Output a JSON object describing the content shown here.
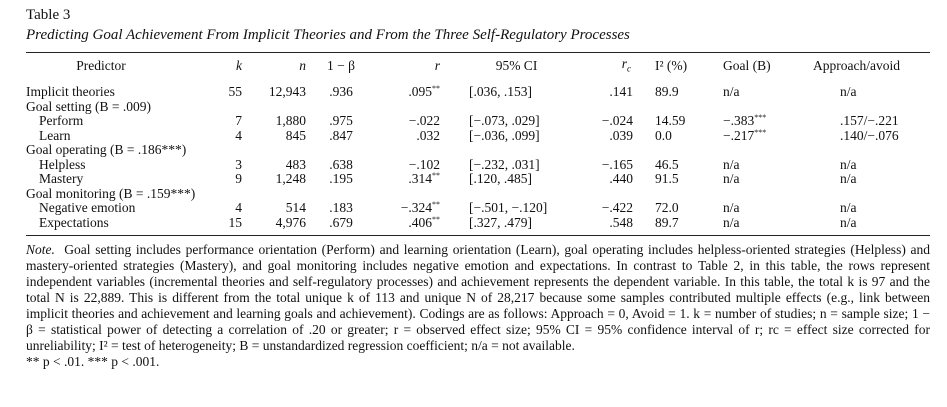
{
  "table_label": "Table 3",
  "table_title": "Predicting Goal Achievement From Implicit Theories and From the Three Self-Regulatory Processes",
  "columns": {
    "predictor": "Predictor",
    "k": "k",
    "N": "n",
    "power": "1 − β",
    "r": "r",
    "ci": "95% CI",
    "rc": "r",
    "rc_sub": "c",
    "i2": "I² (%)",
    "goal": "Goal (B)",
    "approach": "Approach/avoid"
  },
  "rows": [
    {
      "predictor": "Implicit theories",
      "indent": false,
      "k": "55",
      "n": "12,943",
      "power": ".936",
      "r": ".095",
      "r_sig": "**",
      "ci": "[.036, .153]",
      "rc": ".141",
      "i2": "89.9",
      "goal": "n/a",
      "goal_sig": "",
      "approach": "n/a"
    },
    {
      "predictor": "Goal setting (B = .009)",
      "indent": false,
      "header": true
    },
    {
      "predictor": "Perform",
      "indent": true,
      "k": "7",
      "n": "1,880",
      "power": ".975",
      "r": "−.022",
      "r_sig": "",
      "ci": "[−.073, .029]",
      "rc": "−.024",
      "i2": "14.59",
      "goal": "−.383",
      "goal_sig": "***",
      "approach": ".157/−.221"
    },
    {
      "predictor": "Learn",
      "indent": true,
      "k": "4",
      "n": "845",
      "power": ".847",
      "r": ".032",
      "r_sig": "",
      "ci": "[−.036, .099]",
      "rc": ".039",
      "i2": "0.0",
      "goal": "−.217",
      "goal_sig": "***",
      "approach": ".140/−.076"
    },
    {
      "predictor": "Goal operating (B = .186***)",
      "indent": false,
      "header": true
    },
    {
      "predictor": "Helpless",
      "indent": true,
      "k": "3",
      "n": "483",
      "power": ".638",
      "r": "−.102",
      "r_sig": "",
      "ci": "[−.232, .031]",
      "rc": "−.165",
      "i2": "46.5",
      "goal": "n/a",
      "goal_sig": "",
      "approach": "n/a"
    },
    {
      "predictor": "Mastery",
      "indent": true,
      "k": "9",
      "n": "1,248",
      "power": ".195",
      "r": ".314",
      "r_sig": "**",
      "ci": "[.120, .485]",
      "rc": ".440",
      "i2": "91.5",
      "goal": "n/a",
      "goal_sig": "",
      "approach": "n/a"
    },
    {
      "predictor": "Goal monitoring (B = .159***)",
      "indent": false,
      "header": true
    },
    {
      "predictor": "Negative emotion",
      "indent": true,
      "k": "4",
      "n": "514",
      "power": ".183",
      "r": "−.324",
      "r_sig": "**",
      "ci": "[−.501, −.120]",
      "rc": "−.422",
      "i2": "72.0",
      "goal": "n/a",
      "goal_sig": "",
      "approach": "n/a"
    },
    {
      "predictor": "Expectations",
      "indent": true,
      "k": "15",
      "n": "4,976",
      "power": ".679",
      "r": ".406",
      "r_sig": "**",
      "ci": "[.327, .479]",
      "rc": ".548",
      "i2": "89.7",
      "goal": "n/a",
      "goal_sig": "",
      "approach": "n/a"
    }
  ],
  "note_label": "Note.",
  "note_text": "Goal setting includes performance orientation (Perform) and learning orientation (Learn), goal operating includes helpless-oriented strategies (Helpless) and mastery-oriented strategies (Mastery), and goal monitoring includes negative emotion and expectations. In contrast to Table 2, in this table, the rows represent independent variables (incremental theories and self-regulatory processes) and achievement represents the dependent variable. In this table, the total k is 97 and the total N is 22,889. This is different from the total unique k of 113 and unique N of 28,217 because some samples contributed multiple effects (e.g., link between implicit theories and achievement and learning goals and achievement). Codings are as follows: Approach = 0, Avoid = 1. k = number of studies; n = sample size; 1 − β = statistical power of detecting a correlation of .20 or greater; r = observed effect size; 95% CI = 95% confidence interval of r; rc = effect size corrected for unreliability; I² = test of heterogeneity; B = unstandardized regression coefficient; n/a = not available.",
  "sig_line": "** p < .01.  *** p < .001."
}
